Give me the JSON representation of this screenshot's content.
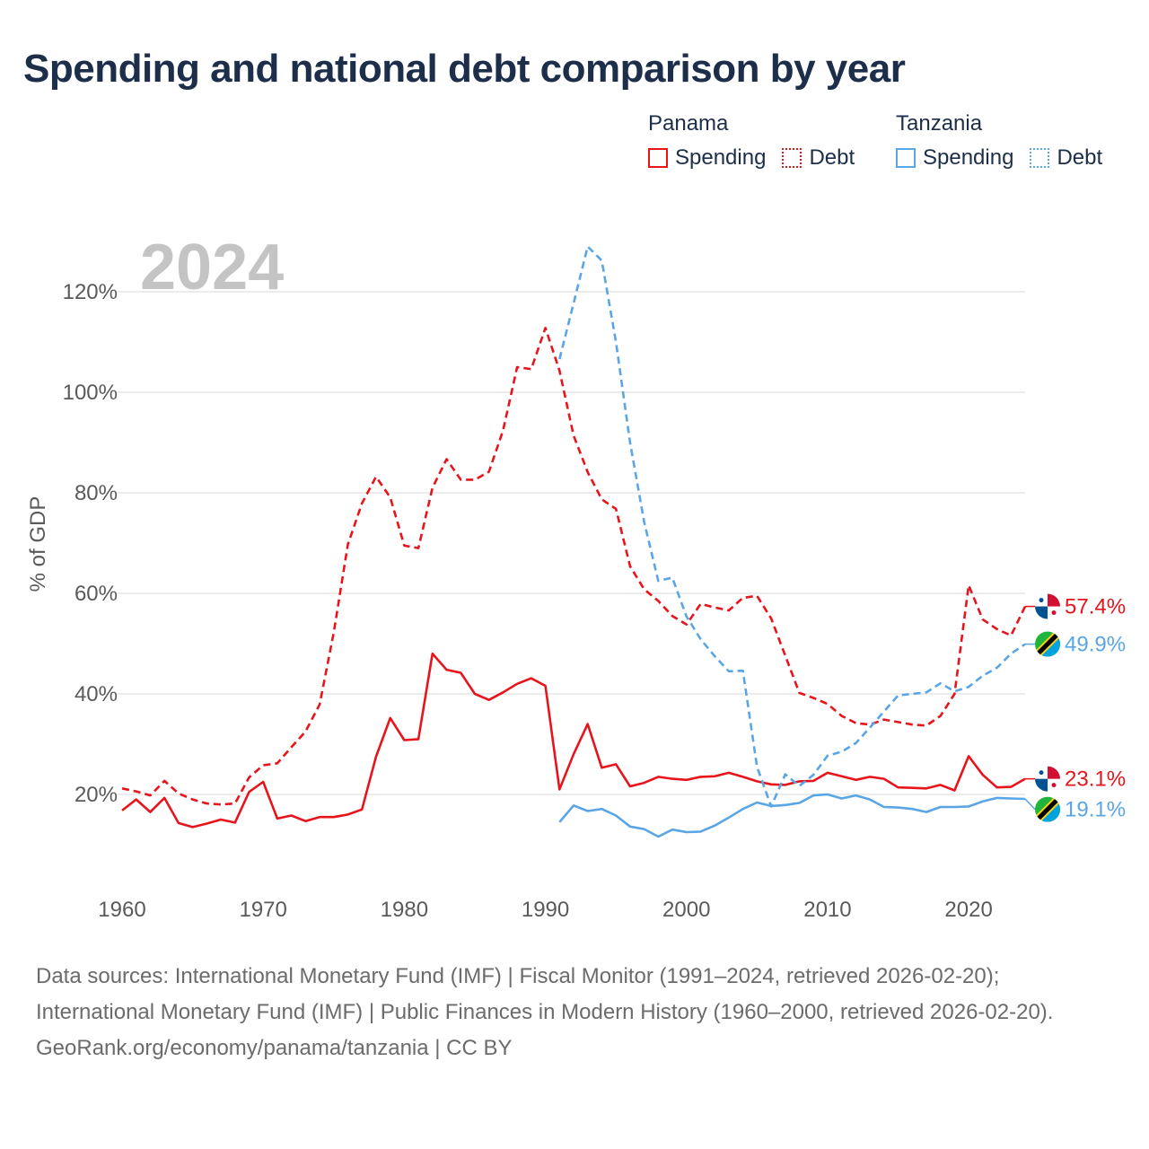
{
  "title": "Spending and national debt comparison by year",
  "legend": {
    "groups": [
      {
        "name": "Panama",
        "color": "#e8141c",
        "items": [
          {
            "label": "Spending",
            "style": "solid"
          },
          {
            "label": "Debt",
            "style": "dotted"
          }
        ]
      },
      {
        "name": "Tanzania",
        "color": "#5aa5e6",
        "items": [
          {
            "label": "Spending",
            "style": "solid"
          },
          {
            "label": "Debt",
            "style": "dotted"
          }
        ]
      }
    ]
  },
  "year_watermark": "2024",
  "footer": {
    "sources": "Data sources: International Monetary Fund (IMF) | Fiscal Monitor (1991–2024, retrieved 2026-02-20); International Monetary Fund (IMF) | Public Finances in Modern History (1960–2000, retrieved 2026-02-20).",
    "credit": "GeoRank.org/economy/panama/tanzania | CC BY"
  },
  "chart_data": {
    "type": "line",
    "title": "Spending and national debt comparison by year",
    "xlabel": "",
    "ylabel": "% of GDP",
    "xlim": [
      1960,
      2024
    ],
    "ylim": [
      0,
      130
    ],
    "x_ticks": [
      1960,
      1970,
      1980,
      1990,
      2000,
      2010,
      2020
    ],
    "y_ticks": [
      20,
      40,
      60,
      80,
      100,
      120
    ],
    "y_tick_labels": [
      "20%",
      "40%",
      "60%",
      "80%",
      "100%",
      "120%"
    ],
    "grid": true,
    "legend_position": "top-right",
    "series": [
      {
        "name": "Panama Spending",
        "country": "Panama",
        "color": "#e8141c",
        "dash": "solid",
        "end_label": "23.1%",
        "points": [
          [
            1960,
            16.8
          ],
          [
            1961,
            19.0
          ],
          [
            1962,
            16.5
          ],
          [
            1963,
            19.3
          ],
          [
            1964,
            14.3
          ],
          [
            1965,
            13.5
          ],
          [
            1966,
            14.2
          ],
          [
            1967,
            15.0
          ],
          [
            1968,
            14.4
          ],
          [
            1969,
            20.5
          ],
          [
            1970,
            22.5
          ],
          [
            1971,
            15.2
          ],
          [
            1972,
            15.8
          ],
          [
            1973,
            14.7
          ],
          [
            1974,
            15.5
          ],
          [
            1975,
            15.5
          ],
          [
            1976,
            16.0
          ],
          [
            1977,
            17.0
          ],
          [
            1978,
            27.5
          ],
          [
            1979,
            35.2
          ],
          [
            1980,
            30.8
          ],
          [
            1981,
            31.0
          ],
          [
            1982,
            48.0
          ],
          [
            1983,
            44.8
          ],
          [
            1984,
            44.2
          ],
          [
            1985,
            40.0
          ],
          [
            1986,
            38.8
          ],
          [
            1987,
            40.3
          ],
          [
            1988,
            42.0
          ],
          [
            1989,
            43.1
          ],
          [
            1990,
            41.6
          ],
          [
            1991,
            21.0
          ],
          [
            1992,
            28.0
          ],
          [
            1993,
            34.0
          ],
          [
            1994,
            25.3
          ],
          [
            1995,
            26.0
          ],
          [
            1996,
            21.6
          ],
          [
            1997,
            22.3
          ],
          [
            1998,
            23.5
          ],
          [
            1999,
            23.1
          ],
          [
            2000,
            22.9
          ],
          [
            2001,
            23.5
          ],
          [
            2002,
            23.6
          ],
          [
            2003,
            24.3
          ],
          [
            2004,
            23.5
          ],
          [
            2005,
            22.6
          ],
          [
            2006,
            22.0
          ],
          [
            2007,
            21.9
          ],
          [
            2008,
            22.6
          ],
          [
            2009,
            22.7
          ],
          [
            2010,
            24.3
          ],
          [
            2011,
            23.6
          ],
          [
            2012,
            22.9
          ],
          [
            2013,
            23.5
          ],
          [
            2014,
            23.1
          ],
          [
            2015,
            21.4
          ],
          [
            2016,
            21.3
          ],
          [
            2017,
            21.2
          ],
          [
            2018,
            21.9
          ],
          [
            2019,
            20.8
          ],
          [
            2020,
            27.6
          ],
          [
            2021,
            23.9
          ],
          [
            2022,
            21.4
          ],
          [
            2023,
            21.5
          ],
          [
            2024,
            23.1
          ]
        ]
      },
      {
        "name": "Panama Debt",
        "country": "Panama",
        "color": "#e8141c",
        "dash": "dashed",
        "end_label": "57.4%",
        "points": [
          [
            1960,
            21.2
          ],
          [
            1961,
            20.6
          ],
          [
            1962,
            19.8
          ],
          [
            1963,
            22.7
          ],
          [
            1964,
            20.2
          ],
          [
            1965,
            19.0
          ],
          [
            1966,
            18.2
          ],
          [
            1967,
            18.0
          ],
          [
            1968,
            18.2
          ],
          [
            1969,
            23.4
          ],
          [
            1970,
            25.8
          ],
          [
            1971,
            26.2
          ],
          [
            1972,
            29.4
          ],
          [
            1973,
            32.5
          ],
          [
            1974,
            37.9
          ],
          [
            1975,
            52.2
          ],
          [
            1976,
            69.7
          ],
          [
            1977,
            77.9
          ],
          [
            1978,
            83.2
          ],
          [
            1979,
            79.1
          ],
          [
            1980,
            69.5
          ],
          [
            1981,
            69.0
          ],
          [
            1982,
            81.0
          ],
          [
            1983,
            86.7
          ],
          [
            1984,
            82.6
          ],
          [
            1985,
            82.6
          ],
          [
            1986,
            84.2
          ],
          [
            1987,
            92.4
          ],
          [
            1988,
            105.0
          ],
          [
            1989,
            104.6
          ],
          [
            1990,
            112.8
          ],
          [
            1991,
            104.3
          ],
          [
            1992,
            91.4
          ],
          [
            1993,
            84.1
          ],
          [
            1994,
            78.7
          ],
          [
            1995,
            76.8
          ],
          [
            1996,
            65.4
          ],
          [
            1997,
            60.8
          ],
          [
            1998,
            58.5
          ],
          [
            1999,
            55.5
          ],
          [
            2000,
            53.8
          ],
          [
            2001,
            57.9
          ],
          [
            2002,
            57.2
          ],
          [
            2003,
            56.6
          ],
          [
            2004,
            59.1
          ],
          [
            2005,
            59.5
          ],
          [
            2006,
            55.0
          ],
          [
            2007,
            47.6
          ],
          [
            2008,
            40.2
          ],
          [
            2009,
            39.2
          ],
          [
            2010,
            38.0
          ],
          [
            2011,
            35.6
          ],
          [
            2012,
            34.2
          ],
          [
            2013,
            33.9
          ],
          [
            2014,
            34.9
          ],
          [
            2015,
            34.4
          ],
          [
            2016,
            33.9
          ],
          [
            2017,
            33.7
          ],
          [
            2018,
            35.6
          ],
          [
            2019,
            40.0
          ],
          [
            2020,
            61.6
          ],
          [
            2021,
            54.8
          ],
          [
            2022,
            52.9
          ],
          [
            2023,
            51.6
          ],
          [
            2024,
            57.4
          ]
        ]
      },
      {
        "name": "Tanzania Spending",
        "country": "Tanzania",
        "color": "#5aa5e6",
        "dash": "solid",
        "end_label": "19.1%",
        "points": [
          [
            1991,
            14.5
          ],
          [
            1992,
            17.8
          ],
          [
            1993,
            16.7
          ],
          [
            1994,
            17.1
          ],
          [
            1995,
            15.8
          ],
          [
            1996,
            13.6
          ],
          [
            1997,
            13.1
          ],
          [
            1998,
            11.6
          ],
          [
            1999,
            13.0
          ],
          [
            2000,
            12.5
          ],
          [
            2001,
            12.6
          ],
          [
            2002,
            13.8
          ],
          [
            2003,
            15.4
          ],
          [
            2004,
            17.1
          ],
          [
            2005,
            18.4
          ],
          [
            2006,
            17.7
          ],
          [
            2007,
            17.9
          ],
          [
            2008,
            18.3
          ],
          [
            2009,
            19.8
          ],
          [
            2010,
            20.0
          ],
          [
            2011,
            19.2
          ],
          [
            2012,
            19.8
          ],
          [
            2013,
            19.0
          ],
          [
            2014,
            17.5
          ],
          [
            2015,
            17.4
          ],
          [
            2016,
            17.1
          ],
          [
            2017,
            16.5
          ],
          [
            2018,
            17.5
          ],
          [
            2019,
            17.5
          ],
          [
            2020,
            17.6
          ],
          [
            2021,
            18.6
          ],
          [
            2022,
            19.3
          ],
          [
            2023,
            19.2
          ],
          [
            2024,
            19.1
          ]
        ]
      },
      {
        "name": "Tanzania Debt",
        "country": "Tanzania",
        "color": "#5aa5e6",
        "dash": "dashed",
        "end_label": "49.9%",
        "points": [
          [
            1991,
            106.6
          ],
          [
            1992,
            117.7
          ],
          [
            1993,
            129.0
          ],
          [
            1994,
            126.2
          ],
          [
            1995,
            110.0
          ],
          [
            1996,
            90.0
          ],
          [
            1997,
            74.2
          ],
          [
            1998,
            62.5
          ],
          [
            1999,
            63.1
          ],
          [
            2000,
            55.4
          ],
          [
            2001,
            50.9
          ],
          [
            2002,
            47.5
          ],
          [
            2003,
            44.5
          ],
          [
            2004,
            44.6
          ],
          [
            2005,
            25.5
          ],
          [
            2006,
            17.6
          ],
          [
            2007,
            24.0
          ],
          [
            2008,
            21.7
          ],
          [
            2009,
            23.9
          ],
          [
            2010,
            27.7
          ],
          [
            2011,
            28.5
          ],
          [
            2012,
            30.2
          ],
          [
            2013,
            33.3
          ],
          [
            2014,
            36.5
          ],
          [
            2015,
            39.7
          ],
          [
            2016,
            40.0
          ],
          [
            2017,
            40.3
          ],
          [
            2018,
            42.1
          ],
          [
            2019,
            40.5
          ],
          [
            2020,
            41.4
          ],
          [
            2021,
            43.6
          ],
          [
            2022,
            45.2
          ],
          [
            2023,
            48.0
          ],
          [
            2024,
            49.9
          ]
        ]
      }
    ]
  }
}
